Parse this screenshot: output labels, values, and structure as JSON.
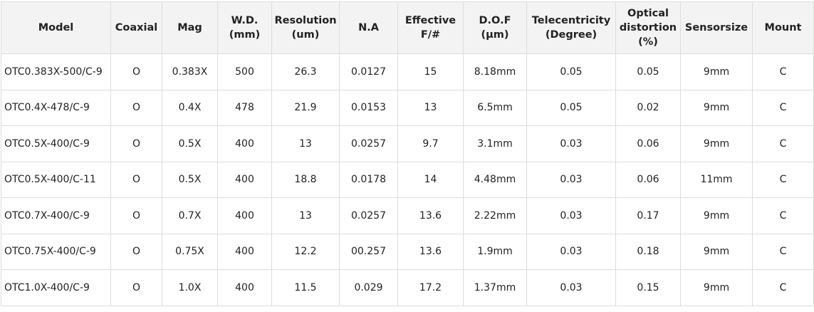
{
  "table": {
    "header": [
      [
        "Model"
      ],
      [
        "Coaxial"
      ],
      [
        "Mag"
      ],
      [
        "W.D.",
        "(mm)"
      ],
      [
        "Resolution",
        "(um)"
      ],
      [
        "N.A"
      ],
      [
        "Effective",
        "F/#"
      ],
      [
        "D.O.F",
        "(μm)"
      ],
      [
        "Telecentricity",
        "(Degree)"
      ],
      [
        "Optical",
        "distortion",
        "(%)"
      ],
      [
        "Sensorsize"
      ],
      [
        "Mount"
      ]
    ],
    "rows": [
      [
        "OTC0.383X-500/C-9",
        "O",
        "0.383X",
        "500",
        "26.3",
        "0.0127",
        "15",
        "8.18mm",
        "0.05",
        "0.05",
        "9mm",
        "C"
      ],
      [
        "OTC0.4X-478/C-9",
        "O",
        "0.4X",
        "478",
        "21.9",
        "0.0153",
        "13",
        "6.5mm",
        "0.05",
        "0.02",
        "9mm",
        "C"
      ],
      [
        "OTC0.5X-400/C-9",
        "O",
        "0.5X",
        "400",
        "13",
        "0.0257",
        "9.7",
        "3.1mm",
        "0.03",
        "0.06",
        "9mm",
        "C"
      ],
      [
        "OTC0.5X-400/C-11",
        "O",
        "0.5X",
        "400",
        "18.8",
        "0.0178",
        "14",
        "4.48mm",
        "0.03",
        "0.06",
        "11mm",
        "C"
      ],
      [
        "OTC0.7X-400/C-9",
        "O",
        "0.7X",
        "400",
        "13",
        "0.0257",
        "13.6",
        "2.22mm",
        "0.03",
        "0.17",
        "9mm",
        "C"
      ],
      [
        "OTC0.75X-400/C-9",
        "O",
        "0.75X",
        "400",
        "12.2",
        "00.257",
        "13.6",
        "1.9mm",
        "0.03",
        "0.18",
        "9mm",
        "C"
      ],
      [
        "OTC1.0X-400/C-9",
        "O",
        "1.0X",
        "400",
        "11.5",
        "0.029",
        "17.2",
        "1.37mm",
        "0.03",
        "0.15",
        "9mm",
        "C"
      ]
    ]
  }
}
